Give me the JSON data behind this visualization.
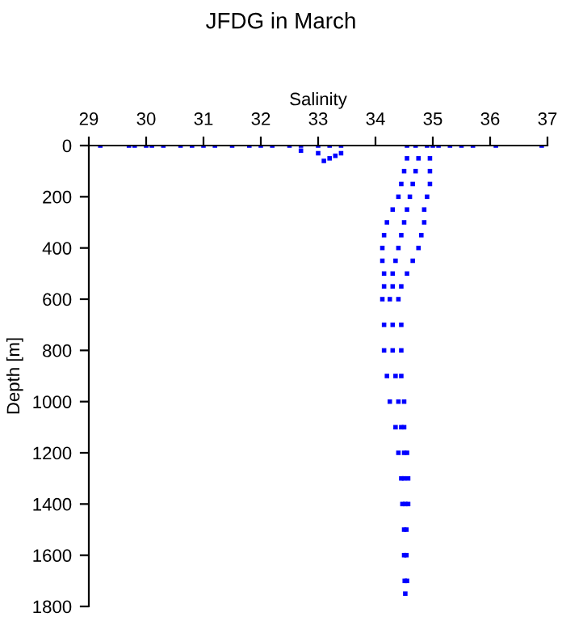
{
  "chart_data": {
    "type": "scatter",
    "title": "JFDG in March",
    "xlabel": "Salinity",
    "ylabel": "Depth [m]",
    "marker": "square",
    "grid": false,
    "legend": false,
    "xlim": [
      29,
      37
    ],
    "xticks": [
      29,
      30,
      31,
      32,
      33,
      34,
      35,
      36,
      37
    ],
    "ylim": [
      1800,
      0
    ],
    "yticks": [
      0,
      200,
      400,
      600,
      800,
      1000,
      1200,
      1400,
      1600,
      1800
    ],
    "series": [
      {
        "color": "#0000ff",
        "x": [
          29.2,
          29.7,
          29.8,
          30.0,
          30.1,
          30.3,
          30.6,
          30.8,
          31.0,
          31.2,
          31.5,
          31.8,
          32.0,
          32.2,
          32.5,
          32.7,
          33.0,
          33.2,
          33.4,
          35.1,
          35.3,
          35.5,
          35.7,
          36.1,
          36.9,
          32.7,
          33.0,
          33.2,
          33.3,
          33.4,
          33.1,
          34.55,
          34.7,
          34.9,
          35.0,
          34.55,
          34.75,
          34.95,
          34.5,
          34.7,
          34.95,
          34.45,
          34.65,
          34.95,
          34.4,
          34.6,
          34.9,
          34.3,
          34.55,
          34.85,
          34.2,
          34.5,
          34.85,
          34.15,
          34.45,
          34.8,
          34.12,
          34.4,
          34.75,
          34.12,
          34.35,
          34.65,
          34.15,
          34.3,
          34.55,
          34.15,
          34.3,
          34.45,
          34.12,
          34.25,
          34.4,
          34.15,
          34.3,
          34.45,
          34.15,
          34.3,
          34.45,
          34.2,
          34.35,
          34.45,
          34.25,
          34.4,
          34.5,
          34.35,
          34.45,
          34.5,
          34.4,
          34.5,
          34.55,
          34.45,
          34.5,
          34.57,
          34.47,
          34.52,
          34.57,
          34.5,
          34.54,
          34.5,
          34.54,
          34.51,
          34.55,
          34.52
        ],
        "values": [
          0,
          0,
          0,
          0,
          0,
          0,
          0,
          0,
          0,
          0,
          0,
          0,
          0,
          0,
          0,
          0,
          0,
          0,
          0,
          0,
          0,
          0,
          0,
          0,
          0,
          20,
          30,
          50,
          40,
          30,
          60,
          0,
          0,
          0,
          0,
          50,
          50,
          50,
          100,
          100,
          100,
          150,
          150,
          150,
          200,
          200,
          200,
          250,
          250,
          250,
          300,
          300,
          300,
          350,
          350,
          350,
          400,
          400,
          400,
          450,
          450,
          450,
          500,
          500,
          500,
          550,
          550,
          550,
          600,
          600,
          600,
          700,
          700,
          700,
          800,
          800,
          800,
          900,
          900,
          900,
          1000,
          1000,
          1000,
          1100,
          1100,
          1100,
          1200,
          1200,
          1200,
          1300,
          1300,
          1300,
          1400,
          1400,
          1400,
          1500,
          1500,
          1600,
          1600,
          1700,
          1700,
          1750
        ]
      }
    ]
  }
}
